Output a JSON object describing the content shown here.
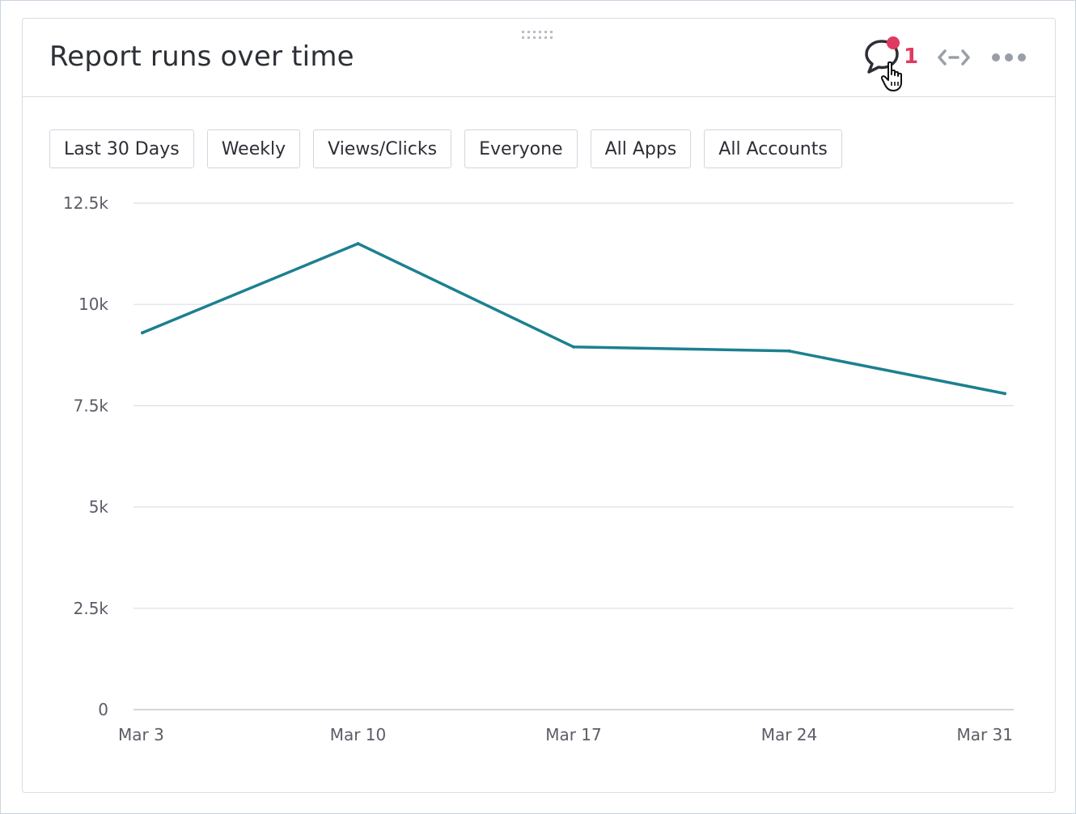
{
  "widget": {
    "title": "Report runs over time",
    "comment_count": "1",
    "icons": {
      "drag": "drag-handle-icon",
      "comment": "comment-icon",
      "cursor": "hand-pointer-icon",
      "expand": "expand-horizontal-icon",
      "more": "more-options-icon"
    }
  },
  "filters": [
    {
      "label": "Last 30 Days"
    },
    {
      "label": "Weekly"
    },
    {
      "label": "Views/Clicks"
    },
    {
      "label": "Everyone"
    },
    {
      "label": "All Apps"
    },
    {
      "label": "All Accounts"
    }
  ],
  "colors": {
    "line": "#1c8090",
    "badge": "#e03a61",
    "grid": "#dcdfe6",
    "tick_text": "#5a5d66"
  },
  "chart_data": {
    "type": "line",
    "title": "",
    "xlabel": "",
    "ylabel": "",
    "categories": [
      "Mar 3",
      "Mar 10",
      "Mar 17",
      "Mar 24",
      "Mar 31"
    ],
    "series": [
      {
        "values": [
          9300,
          11500,
          8950,
          8850,
          7800
        ]
      }
    ],
    "ylim": [
      0,
      12500
    ],
    "yticks": [
      0,
      2500,
      5000,
      7500,
      10000,
      12500
    ],
    "ytick_labels": [
      "0",
      "2.5k",
      "5k",
      "7.5k",
      "10k",
      "12.5k"
    ],
    "grid": true,
    "legend": "none"
  }
}
